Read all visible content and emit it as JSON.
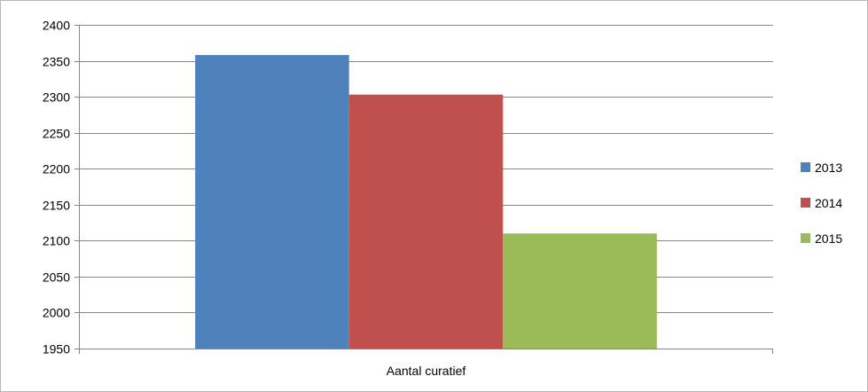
{
  "chart_data": {
    "type": "bar",
    "categories": [
      "Aantal curatief"
    ],
    "series": [
      {
        "name": "2013",
        "values": [
          2358
        ],
        "color": "#4f81bd"
      },
      {
        "name": "2014",
        "values": [
          2303
        ],
        "color": "#c0504d"
      },
      {
        "name": "2015",
        "values": [
          2110
        ],
        "color": "#9bbb59"
      }
    ],
    "ylim": [
      1950,
      2400
    ],
    "yticks": [
      "1950",
      "2000",
      "2050",
      "2100",
      "2150",
      "2200",
      "2250",
      "2300",
      "2350",
      "2400"
    ],
    "grid": true,
    "legend": "right"
  }
}
